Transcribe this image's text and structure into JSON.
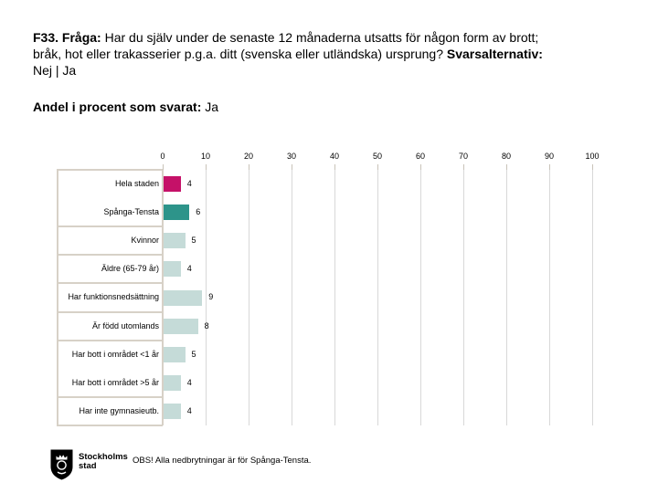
{
  "title": {
    "lines": [
      {
        "segments": [
          {
            "text": "F33. Fråga: ",
            "bold": true
          },
          {
            "text": "Har du själv under de senaste 12 månaderna utsatts för någon form av brott;",
            "bold": false
          }
        ]
      },
      {
        "segments": [
          {
            "text": "bråk, hot eller trakasserier p.g.a. ditt (svenska eller utländska) ursprung? ",
            "bold": false
          },
          {
            "text": "Svarsalternativ:",
            "bold": true
          }
        ]
      },
      {
        "segments": [
          {
            "text": "Nej | Ja",
            "bold": false
          }
        ]
      }
    ]
  },
  "subtitle": {
    "bold_text": "Andel i procent som svarat:",
    "normal_text": " Ja"
  },
  "chart_data": {
    "type": "bar",
    "orientation": "horizontal",
    "title": "Andel i procent som svarat: Ja",
    "categories": [
      "Hela staden",
      "Spånga-Tensta",
      "Kvinnor",
      "Äldre (65-79 år)",
      "Har funktionsnedsättning",
      "Är född utomlands",
      "Har bott i området <1 år",
      "Har bott i området >5 år",
      "Har inte gymnasieutb."
    ],
    "values": [
      4,
      6,
      5,
      4,
      9,
      8,
      5,
      4,
      4
    ],
    "bar_colors": [
      "#c51168",
      "#2d948a",
      "#c5dbd8",
      "#c5dbd8",
      "#c5dbd8",
      "#c5dbd8",
      "#c5dbd8",
      "#c5dbd8",
      "#c5dbd8"
    ],
    "category_group_sizes": [
      2,
      1,
      1,
      1,
      1,
      2,
      1
    ],
    "xlim": [
      0,
      100
    ],
    "x_ticks": [
      0,
      10,
      20,
      30,
      40,
      50,
      60,
      70,
      80,
      90,
      100
    ],
    "grid": true,
    "value_labels_shown": true,
    "legend": "none"
  },
  "colors": {
    "accent_magenta": "#c51168",
    "accent_teal": "#2d948a",
    "bar_light_teal": "#c5dbd8",
    "gridline": "#d8d8d8",
    "axis_frame": "#d7d1c7",
    "text": "#000000"
  },
  "footer": {
    "logo_line1": "Stockholms",
    "logo_line2": "stad",
    "note": "OBS! Alla nedbrytningar är för Spånga-Tensta."
  }
}
